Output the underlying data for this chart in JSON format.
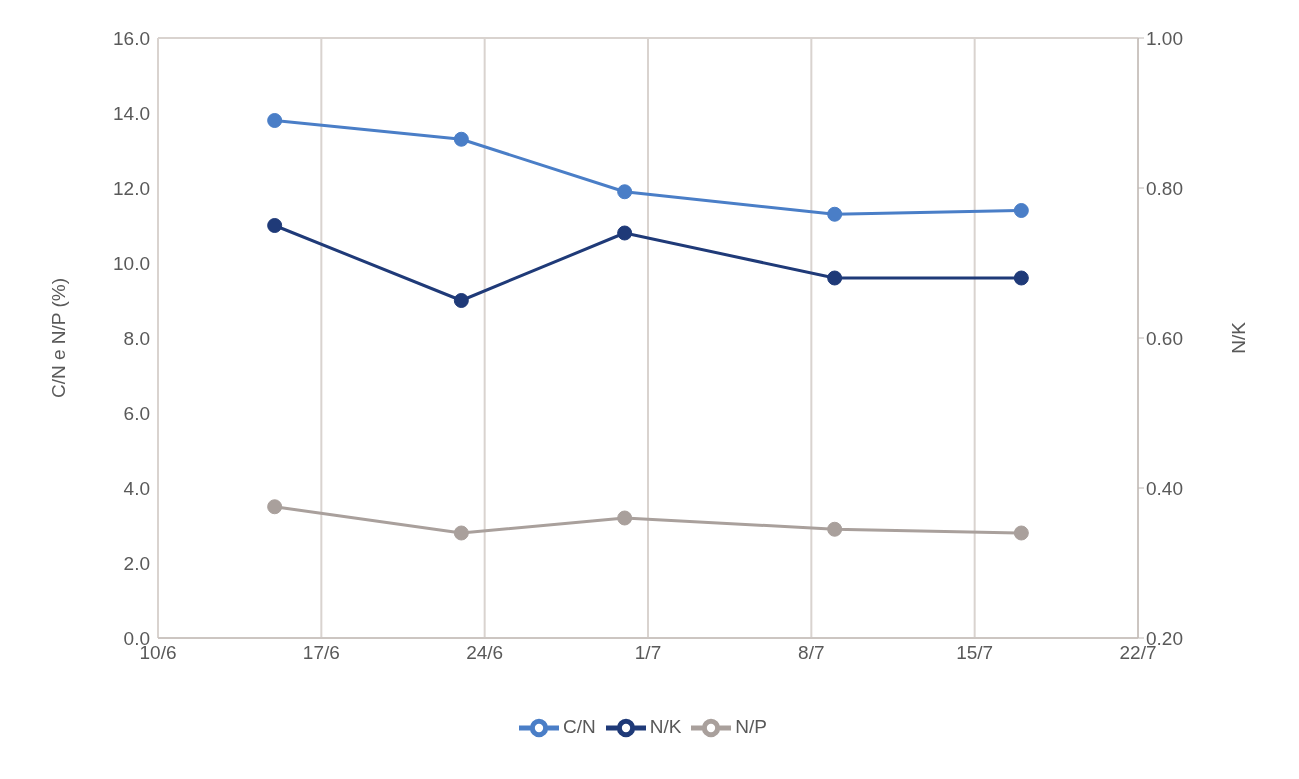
{
  "chart_data": {
    "type": "line",
    "x": [
      "--06-15",
      "--06-23",
      "--06-30",
      "--07-09",
      "--07-17"
    ],
    "series": [
      {
        "name": "C/N",
        "color": "#4a7ec7",
        "values": [
          13.8,
          13.3,
          11.9,
          11.3,
          11.4
        ]
      },
      {
        "name": "N/P",
        "color": "#a9a09c",
        "values": [
          3.5,
          2.8,
          3.2,
          2.9,
          2.8
        ]
      },
      {
        "name": "N/K",
        "color": "#1f3a78",
        "axis": "y2",
        "values": [
          0.75,
          0.65,
          0.74,
          0.68,
          0.68
        ]
      }
    ],
    "xlim": [
      "--06-10",
      "--07-22"
    ],
    "xticks": [
      {
        "value": "--06-10",
        "label": "10/6"
      },
      {
        "value": "--06-17",
        "label": "17/6"
      },
      {
        "value": "--06-24",
        "label": "24/6"
      },
      {
        "value": "--07-01",
        "label": "1/7"
      },
      {
        "value": "--07-08",
        "label": "8/7"
      },
      {
        "value": "--07-15",
        "label": "15/7"
      },
      {
        "value": "--07-22",
        "label": "22/7"
      }
    ],
    "ylim": [
      0,
      16
    ],
    "yticks": [
      {
        "value": 0,
        "label": "0.0"
      },
      {
        "value": 2,
        "label": "2.0"
      },
      {
        "value": 4,
        "label": "4.0"
      },
      {
        "value": 6,
        "label": "6.0"
      },
      {
        "value": 8,
        "label": "8.0"
      },
      {
        "value": 10,
        "label": "10.0"
      },
      {
        "value": 12,
        "label": "12.0"
      },
      {
        "value": 14,
        "label": "14.0"
      },
      {
        "value": 16,
        "label": "16.0"
      }
    ],
    "y2lim": [
      0.2,
      1.0
    ],
    "y2ticks": [
      {
        "value": 0.2,
        "label": "0.20"
      },
      {
        "value": 0.4,
        "label": "0.40"
      },
      {
        "value": 0.6,
        "label": "0.60"
      },
      {
        "value": 0.8,
        "label": "0.80"
      },
      {
        "value": 1.0,
        "label": "1.00"
      }
    ],
    "ylabel": "C/N e N/P (%)",
    "y2label": "N/K",
    "grid": true,
    "legend": "bottom",
    "marker": "circle",
    "line_style": "solid"
  }
}
